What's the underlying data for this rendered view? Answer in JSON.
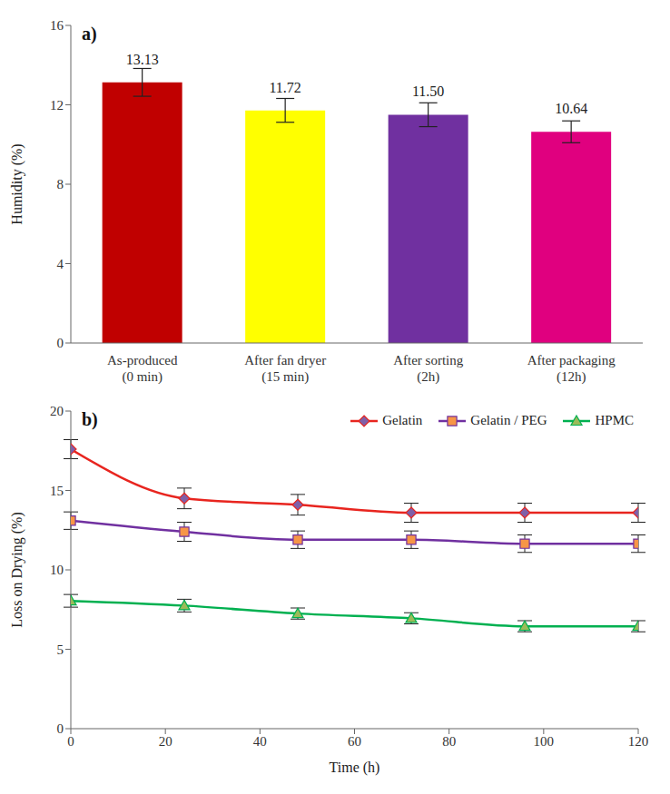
{
  "chart_data": [
    {
      "type": "bar",
      "title": "a)",
      "ylabel": "Humidity (%)",
      "categories": [
        "As-produced\n(0 min)",
        "After fan dryer\n(15 min)",
        "After sorting\n(2h)",
        "After packaging\n(12h)"
      ],
      "values": [
        13.13,
        11.72,
        11.5,
        10.64
      ],
      "value_labels": [
        "13.13",
        "11.72",
        "11.50",
        "10.64"
      ],
      "errors": [
        0.7,
        0.6,
        0.6,
        0.55
      ],
      "colors": [
        "#c00000",
        "#ffff00",
        "#7030a0",
        "#e0007f"
      ],
      "ylim": [
        0,
        16
      ],
      "yticks": [
        0,
        4,
        8,
        12,
        16
      ],
      "grid": false,
      "data_labels": true
    },
    {
      "type": "line",
      "title": "b)",
      "xlabel": "Time (h)",
      "ylabel": "Loss on Drying (%)",
      "x": [
        0,
        24,
        48,
        72,
        96,
        120
      ],
      "xlim": [
        0,
        120
      ],
      "xticks": [
        0,
        20,
        40,
        60,
        80,
        100,
        120
      ],
      "ylim": [
        0,
        20
      ],
      "yticks": [
        0,
        5,
        10,
        15,
        20
      ],
      "grid": false,
      "legend": "upper right",
      "series": [
        {
          "name": "Gelatin",
          "color": "#e8251f",
          "marker": "diamond",
          "line_style": "solid",
          "values": [
            17.6,
            14.5,
            14.1,
            13.6,
            13.6,
            13.6
          ],
          "errors": [
            0.6,
            0.65,
            0.65,
            0.6,
            0.6,
            0.6
          ]
        },
        {
          "name": "Gelatin / PEG",
          "color": "#7030a0",
          "marker": "square",
          "line_style": "solid",
          "values": [
            13.1,
            12.4,
            11.9,
            11.9,
            11.65,
            11.65
          ],
          "errors": [
            0.55,
            0.6,
            0.55,
            0.55,
            0.55,
            0.55
          ]
        },
        {
          "name": "HPMC",
          "color": "#00b050",
          "marker": "triangle",
          "line_style": "solid",
          "values": [
            8.05,
            7.75,
            7.25,
            6.95,
            6.45,
            6.45
          ],
          "errors": [
            0.4,
            0.4,
            0.35,
            0.35,
            0.35,
            0.35
          ]
        }
      ]
    }
  ]
}
